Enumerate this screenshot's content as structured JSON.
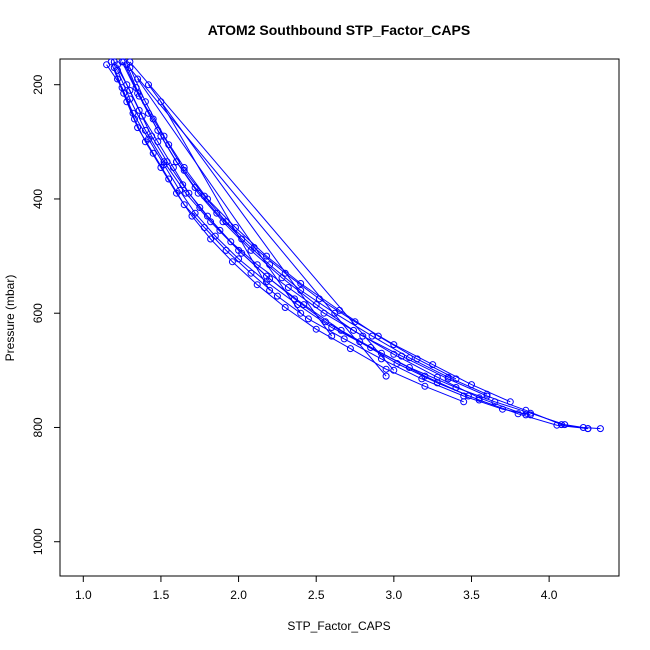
{
  "chart_data": {
    "type": "line",
    "title": "ATOM2 Southbound STP_Factor_CAPS",
    "xlabel": "STP_Factor_CAPS",
    "ylabel": "Pressure (mbar)",
    "xlim": [
      0.85,
      4.45
    ],
    "ylim": [
      1060,
      155
    ],
    "y_reversed": true,
    "x_ticks": [
      1.0,
      1.5,
      2.0,
      2.5,
      3.0,
      3.5,
      4.0
    ],
    "x_tick_labels": [
      "1.0",
      "1.5",
      "2.0",
      "2.5",
      "3.0",
      "3.5",
      "4.0"
    ],
    "y_ticks": [
      200,
      400,
      600,
      800,
      1000
    ],
    "y_tick_labels": [
      "200",
      "400",
      "600",
      "800",
      "1000"
    ],
    "grid": false,
    "color": "#0000ff",
    "marker": "open-circle",
    "series": [
      {
        "x": [
          1.15,
          1.25,
          1.32,
          1.42,
          1.52,
          1.62,
          1.72,
          1.85,
          2.0,
          2.18,
          2.38,
          2.6,
          2.85,
          3.1,
          3.4,
          3.65,
          3.88,
          4.1,
          4.22,
          4.33
        ],
        "y": [
          165,
          205,
          250,
          295,
          340,
          385,
          425,
          465,
          505,
          545,
          585,
          625,
          660,
          695,
          730,
          755,
          775,
          795,
          800,
          802
        ]
      },
      {
        "x": [
          1.2,
          1.3,
          1.38,
          1.48,
          1.58,
          1.68,
          1.8,
          1.95,
          2.12,
          2.32,
          2.55,
          2.8,
          3.05,
          3.35,
          3.6,
          3.85,
          4.08,
          4.25
        ],
        "y": [
          160,
          210,
          255,
          300,
          345,
          390,
          430,
          475,
          515,
          555,
          600,
          640,
          675,
          715,
          745,
          770,
          795,
          802
        ]
      },
      {
        "x": [
          1.18,
          1.22,
          1.28,
          1.35,
          1.45,
          1.55,
          1.65,
          1.78,
          1.92,
          2.08,
          2.25,
          2.45,
          2.68,
          2.92,
          3.18,
          3.45,
          3.7,
          3.88
        ],
        "y": [
          160,
          190,
          230,
          275,
          320,
          365,
          410,
          450,
          490,
          530,
          570,
          610,
          645,
          680,
          715,
          745,
          768,
          778
        ]
      },
      {
        "x": [
          1.25,
          1.35,
          1.45,
          1.55,
          1.65,
          1.78,
          1.92,
          2.1,
          2.3,
          2.52,
          2.75,
          3.0,
          3.25,
          3.5,
          3.75
        ],
        "y": [
          160,
          215,
          260,
          305,
          350,
          395,
          440,
          485,
          530,
          575,
          615,
          655,
          690,
          725,
          755
        ]
      },
      {
        "x": [
          1.22,
          1.28,
          1.36,
          1.44,
          1.54,
          1.64,
          1.75,
          1.88,
          2.02,
          2.18,
          2.36,
          2.56,
          2.78,
          3.02,
          3.28,
          3.55,
          3.8,
          4.05,
          4.25
        ],
        "y": [
          165,
          200,
          245,
          290,
          335,
          375,
          415,
          455,
          495,
          535,
          575,
          615,
          650,
          688,
          722,
          752,
          776,
          796,
          802
        ]
      },
      {
        "x": [
          1.28,
          1.34,
          1.42,
          1.5,
          1.6,
          1.72,
          1.86,
          2.02,
          2.2,
          2.4,
          2.62,
          2.86,
          3.1,
          3.35,
          3.6
        ],
        "y": [
          165,
          205,
          250,
          290,
          335,
          380,
          425,
          470,
          515,
          560,
          600,
          640,
          678,
          712,
          742
        ]
      },
      {
        "x": [
          1.2,
          1.26,
          1.33,
          1.4,
          1.5,
          1.6,
          1.7,
          1.82,
          1.96,
          2.12,
          2.3,
          2.5,
          2.72,
          2.95,
          3.2,
          3.45
        ],
        "y": [
          170,
          215,
          260,
          300,
          345,
          390,
          430,
          470,
          510,
          550,
          590,
          628,
          662,
          698,
          728,
          755
        ]
      },
      {
        "x": [
          1.3,
          1.4,
          1.52,
          1.65,
          1.8,
          1.98,
          2.18,
          2.4,
          2.65,
          2.9,
          3.15,
          3.4
        ],
        "y": [
          170,
          230,
          290,
          345,
          400,
          450,
          500,
          548,
          595,
          640,
          680,
          715
        ]
      },
      {
        "x": [
          1.26,
          1.36,
          1.48,
          1.6,
          1.74,
          1.9,
          2.08,
          2.28,
          2.5,
          2.74,
          3.0,
          3.28,
          3.55,
          3.85
        ],
        "y": [
          160,
          220,
          280,
          335,
          390,
          440,
          490,
          538,
          585,
          630,
          672,
          712,
          748,
          778
        ]
      },
      {
        "x": [
          1.22,
          1.3,
          1.4,
          1.52,
          1.66,
          1.82,
          2.0,
          2.2,
          2.42,
          2.66,
          2.92,
          3.2,
          3.48
        ],
        "y": [
          175,
          225,
          280,
          335,
          390,
          440,
          490,
          540,
          585,
          630,
          670,
          710,
          745
        ]
      },
      {
        "x": [
          1.3,
          3.0
        ],
        "y": [
          160,
          700
        ]
      },
      {
        "x": [
          1.28,
          2.95
        ],
        "y": [
          165,
          710
        ]
      },
      {
        "x": [
          1.42,
          2.6
        ],
        "y": [
          200,
          640
        ]
      },
      {
        "x": [
          1.35,
          2.4
        ],
        "y": [
          190,
          600
        ]
      },
      {
        "x": [
          1.5,
          2.2
        ],
        "y": [
          230,
          560
        ]
      }
    ]
  }
}
